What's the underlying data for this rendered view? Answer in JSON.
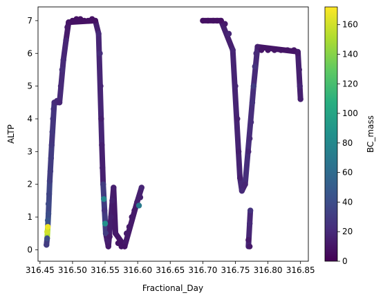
{
  "chart_data": {
    "type": "scatter",
    "xlabel": "Fractional_Day",
    "ylabel": "ALTP",
    "colorbar_label": "BC_mass",
    "colormap": "viridis",
    "xlim": [
      316.447,
      316.862
    ],
    "ylim": [
      -0.35,
      7.42
    ],
    "clim": [
      0,
      172
    ],
    "x_ticks": [
      316.45,
      316.5,
      316.55,
      316.6,
      316.65,
      316.7,
      316.75,
      316.8,
      316.85
    ],
    "x_tick_labels": [
      "316.45",
      "316.50",
      "316.55",
      "316.60",
      "316.65",
      "316.70",
      "316.75",
      "316.80",
      "316.85"
    ],
    "y_ticks": [
      0,
      1,
      2,
      3,
      4,
      5,
      6,
      7
    ],
    "y_tick_labels": [
      "0",
      "1",
      "2",
      "3",
      "4",
      "5",
      "6",
      "7"
    ],
    "c_ticks": [
      0,
      20,
      40,
      60,
      80,
      100,
      120,
      140,
      160
    ],
    "c_tick_labels": [
      "0",
      "20",
      "40",
      "60",
      "80",
      "100",
      "120",
      "140",
      "160"
    ],
    "points": [
      [
        316.46,
        0.15,
        30
      ],
      [
        316.461,
        0.35,
        40
      ],
      [
        316.461,
        0.55,
        160
      ],
      [
        316.462,
        0.7,
        168
      ],
      [
        316.462,
        0.9,
        45
      ],
      [
        316.463,
        1.1,
        40
      ],
      [
        316.463,
        1.4,
        38
      ],
      [
        316.464,
        1.7,
        35
      ],
      [
        316.465,
        2.1,
        32
      ],
      [
        316.466,
        2.4,
        30
      ],
      [
        316.467,
        2.8,
        30
      ],
      [
        316.468,
        3.2,
        28
      ],
      [
        316.469,
        3.6,
        28
      ],
      [
        316.47,
        4.0,
        26
      ],
      [
        316.471,
        4.3,
        25
      ],
      [
        316.472,
        4.5,
        22
      ],
      [
        316.476,
        4.55,
        20
      ],
      [
        316.48,
        4.5,
        18
      ],
      [
        316.482,
        5.0,
        20
      ],
      [
        316.484,
        5.5,
        22
      ],
      [
        316.486,
        5.8,
        20
      ],
      [
        316.49,
        6.4,
        18
      ],
      [
        316.492,
        6.8,
        12
      ],
      [
        316.494,
        6.95,
        10
      ],
      [
        316.5,
        7.0,
        8
      ],
      [
        316.506,
        7.05,
        8
      ],
      [
        316.512,
        7.05,
        8
      ],
      [
        316.518,
        7.0,
        8
      ],
      [
        316.524,
        7.0,
        8
      ],
      [
        316.53,
        7.05,
        8
      ],
      [
        316.535,
        7.0,
        8
      ],
      [
        316.54,
        6.6,
        20
      ],
      [
        316.542,
        6.0,
        22
      ],
      [
        316.543,
        5.0,
        18
      ],
      [
        316.544,
        4.0,
        15
      ],
      [
        316.545,
        3.2,
        15
      ],
      [
        316.546,
        2.5,
        15
      ],
      [
        316.547,
        2.0,
        30
      ],
      [
        316.548,
        1.55,
        78
      ],
      [
        316.549,
        1.2,
        25
      ],
      [
        316.55,
        0.8,
        85
      ],
      [
        316.551,
        0.5,
        30
      ],
      [
        316.553,
        0.3,
        15
      ],
      [
        316.555,
        0.1,
        12
      ],
      [
        316.557,
        0.4,
        12
      ],
      [
        316.559,
        1.0,
        15
      ],
      [
        316.561,
        1.5,
        15
      ],
      [
        316.563,
        1.9,
        15
      ],
      [
        316.566,
        0.5,
        12
      ],
      [
        316.57,
        0.2,
        10
      ],
      [
        316.575,
        0.1,
        10
      ],
      [
        316.58,
        0.1,
        10
      ],
      [
        316.583,
        0.5,
        12
      ],
      [
        316.587,
        0.7,
        12
      ],
      [
        316.591,
        1.0,
        12
      ],
      [
        316.595,
        1.2,
        12
      ],
      [
        316.599,
        1.45,
        15
      ],
      [
        316.602,
        1.35,
        70
      ],
      [
        316.604,
        1.6,
        15
      ],
      [
        316.606,
        1.9,
        18
      ],
      [
        316.7,
        7.0,
        8
      ],
      [
        316.708,
        7.0,
        8
      ],
      [
        316.716,
        7.0,
        8
      ],
      [
        316.722,
        7.0,
        8
      ],
      [
        316.728,
        7.0,
        8
      ],
      [
        316.734,
        6.9,
        12
      ],
      [
        316.74,
        6.6,
        18
      ],
      [
        316.746,
        6.1,
        18
      ],
      [
        316.75,
        5.0,
        18
      ],
      [
        316.753,
        4.0,
        15
      ],
      [
        316.755,
        3.0,
        15
      ],
      [
        316.757,
        2.2,
        15
      ],
      [
        316.76,
        1.8,
        20
      ],
      [
        316.765,
        2.0,
        18
      ],
      [
        316.77,
        3.0,
        18
      ],
      [
        316.772,
        3.4,
        20
      ],
      [
        316.774,
        3.9,
        22
      ],
      [
        316.776,
        4.5,
        25
      ],
      [
        316.778,
        5.0,
        30
      ],
      [
        316.78,
        5.6,
        25
      ],
      [
        316.782,
        6.0,
        20
      ],
      [
        316.784,
        6.2,
        15
      ],
      [
        316.79,
        6.1,
        10
      ],
      [
        316.8,
        6.1,
        10
      ],
      [
        316.81,
        6.1,
        10
      ],
      [
        316.82,
        6.1,
        10
      ],
      [
        316.83,
        6.1,
        10
      ],
      [
        316.84,
        6.1,
        10
      ],
      [
        316.846,
        6.0,
        12
      ],
      [
        316.848,
        5.5,
        15
      ],
      [
        316.849,
        5.0,
        18
      ],
      [
        316.85,
        4.6,
        15
      ],
      [
        316.77,
        0.3,
        12
      ],
      [
        316.772,
        0.8,
        20
      ],
      [
        316.773,
        1.2,
        25
      ],
      [
        316.772,
        0.1,
        12
      ]
    ],
    "segments": [
      [
        316.46,
        0.15,
        316.461,
        0.35,
        30
      ],
      [
        316.461,
        0.35,
        316.462,
        0.7,
        150
      ],
      [
        316.462,
        0.7,
        316.463,
        1.1,
        40
      ],
      [
        316.463,
        1.1,
        316.465,
        2.1,
        36
      ],
      [
        316.465,
        2.1,
        316.468,
        3.2,
        30
      ],
      [
        316.468,
        3.2,
        316.472,
        4.5,
        26
      ],
      [
        316.472,
        4.5,
        316.48,
        4.5,
        20
      ],
      [
        316.48,
        4.5,
        316.486,
        5.8,
        20
      ],
      [
        316.486,
        5.8,
        316.49,
        6.4,
        18
      ],
      [
        316.49,
        6.4,
        316.494,
        6.95,
        12
      ],
      [
        316.494,
        6.95,
        316.535,
        7.0,
        8
      ],
      [
        316.535,
        7.0,
        316.54,
        6.6,
        15
      ],
      [
        316.54,
        6.6,
        316.545,
        3.2,
        18
      ],
      [
        316.545,
        3.2,
        316.547,
        2.0,
        15
      ],
      [
        316.547,
        2.0,
        316.551,
        0.5,
        30
      ],
      [
        316.551,
        0.5,
        316.555,
        0.1,
        12
      ],
      [
        316.555,
        0.1,
        316.563,
        1.9,
        14
      ],
      [
        316.563,
        1.9,
        316.566,
        0.5,
        12
      ],
      [
        316.566,
        0.5,
        316.58,
        0.1,
        10
      ],
      [
        316.58,
        0.1,
        316.599,
        1.45,
        12
      ],
      [
        316.599,
        1.45,
        316.606,
        1.9,
        15
      ],
      [
        316.7,
        7.0,
        316.728,
        7.0,
        8
      ],
      [
        316.728,
        7.0,
        316.746,
        6.1,
        15
      ],
      [
        316.746,
        6.1,
        316.757,
        2.2,
        17
      ],
      [
        316.757,
        2.2,
        316.76,
        1.8,
        20
      ],
      [
        316.76,
        1.8,
        316.765,
        2.0,
        18
      ],
      [
        316.765,
        2.0,
        316.778,
        5.0,
        22
      ],
      [
        316.778,
        5.0,
        316.784,
        6.2,
        20
      ],
      [
        316.784,
        6.2,
        316.846,
        6.05,
        10
      ],
      [
        316.846,
        6.05,
        316.85,
        4.6,
        15
      ],
      [
        316.77,
        0.1,
        316.773,
        1.2,
        18
      ]
    ]
  }
}
